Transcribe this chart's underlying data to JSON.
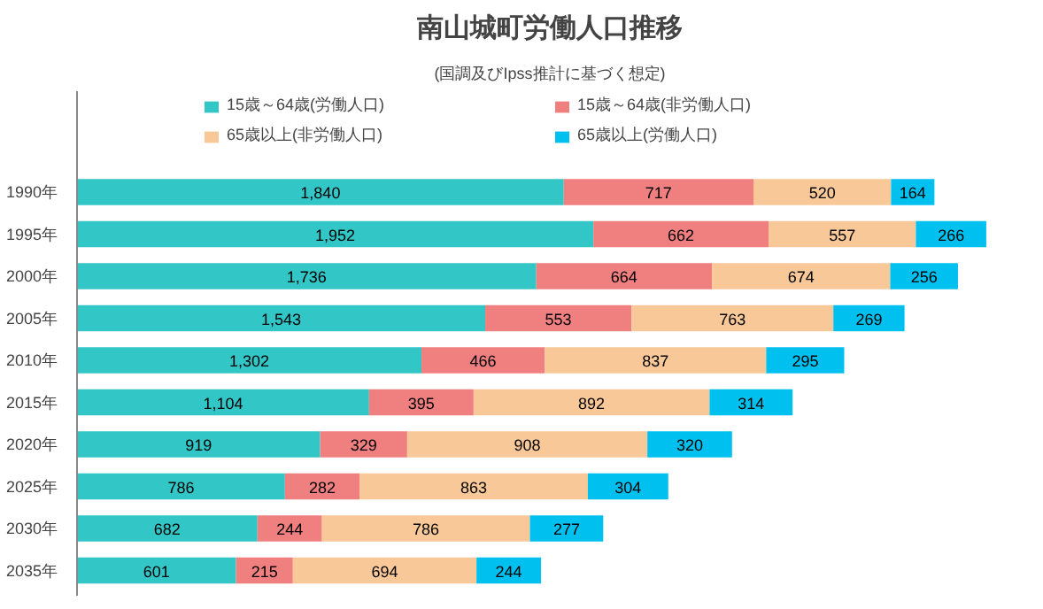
{
  "chart_data": {
    "type": "bar",
    "orientation": "horizontal",
    "stacked": true,
    "legend": "top",
    "grid": false,
    "title": "南山城町労働人口推移",
    "subtitle": "(国調及びIpss推計に基づく想定)",
    "categories": [
      "1990年",
      "1995年",
      "2000年",
      "2005年",
      "2010年",
      "2015年",
      "2020年",
      "2025年",
      "2030年",
      "2035年"
    ],
    "series": [
      {
        "name": "15歳～64歳(労働人口)",
        "color": "#33c6c6",
        "values": [
          1840,
          1952,
          1736,
          1543,
          1302,
          1104,
          919,
          786,
          682,
          601
        ],
        "value_labels": [
          "1,840",
          "1,952",
          "1,736",
          "1,543",
          "1,302",
          "1,104",
          "919",
          "786",
          "682",
          "601"
        ]
      },
      {
        "name": "15歳～64歳(非労働人口)",
        "color": "#f08080",
        "values": [
          717,
          662,
          664,
          553,
          466,
          395,
          329,
          282,
          244,
          215
        ],
        "value_labels": [
          "717",
          "662",
          "664",
          "553",
          "466",
          "395",
          "329",
          "282",
          "244",
          "215"
        ]
      },
      {
        "name": "65歳以上(非労働人口)",
        "color": "#f8c898",
        "values": [
          520,
          557,
          674,
          763,
          837,
          892,
          908,
          863,
          786,
          694
        ],
        "value_labels": [
          "520",
          "557",
          "674",
          "763",
          "837",
          "892",
          "908",
          "863",
          "786",
          "694"
        ]
      },
      {
        "name": "65歳以上(労働人口)",
        "color": "#00c0f0",
        "values": [
          164,
          266,
          256,
          269,
          295,
          314,
          320,
          304,
          277,
          244
        ],
        "value_labels": [
          "164",
          "266",
          "256",
          "269",
          "295",
          "314",
          "320",
          "304",
          "277",
          "244"
        ]
      }
    ]
  }
}
